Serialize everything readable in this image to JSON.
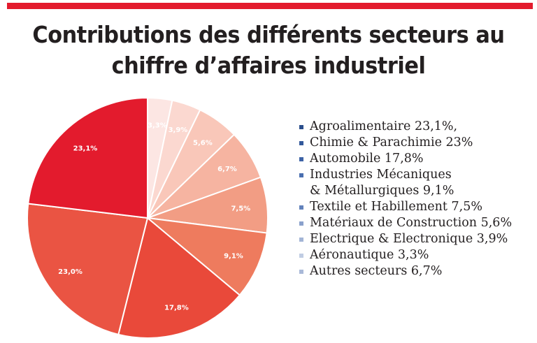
{
  "chart_data": {
    "type": "pie",
    "title": "Contributions des différents secteurs au chiffre d’affaires industriel",
    "title_lines": [
      "Contributions des différents secteurs au",
      "chiffre d’affaires industriel"
    ],
    "slices": [
      {
        "value": 3.3,
        "label": "3,3%",
        "color": "#fce6e3"
      },
      {
        "value": 3.9,
        "label": "3,9%",
        "color": "#fbd8d0"
      },
      {
        "value": 5.6,
        "label": "5,6%",
        "color": "#f9c7b9"
      },
      {
        "value": 6.7,
        "label": "6,7%",
        "color": "#f6b4a1"
      },
      {
        "value": 7.5,
        "label": "7,5%",
        "color": "#f29d84"
      },
      {
        "value": 9.1,
        "label": "9,1%",
        "color": "#ee7b5e"
      },
      {
        "value": 17.8,
        "label": "17,8%",
        "color": "#e9493a"
      },
      {
        "value": 23.0,
        "label": "23,0%",
        "color": "#ea5443"
      },
      {
        "value": 23.1,
        "label": "23,1%",
        "color": "#e31b2d"
      }
    ],
    "legend_position": "right",
    "legend": [
      {
        "text": "Agroalimentaire 23,1%,",
        "color": "#2b4e8c"
      },
      {
        "text": "Chimie & Parachimie 23%",
        "color": "#33599b"
      },
      {
        "text": "Automobile 17,8%",
        "color": "#3d63a6"
      },
      {
        "text": "Industries Mécaniques",
        "text2": "& Métallurgiques 9,1%",
        "color": "#4a6fb0"
      },
      {
        "text": "Textile et Habillement 7,5%",
        "color": "#6282bb"
      },
      {
        "text": "Matériaux de Construction 5,6%",
        "color": "#8aa1cc"
      },
      {
        "text": "Electrique & Electronique 3,9%",
        "color": "#a3b5d6"
      },
      {
        "text": "Aéronautique 3,3%",
        "color": "#c0cde3"
      },
      {
        "text": "Autres secteurs 6,7%",
        "color": "#a9b9d8"
      }
    ]
  },
  "accent_color": "#e31b2d"
}
